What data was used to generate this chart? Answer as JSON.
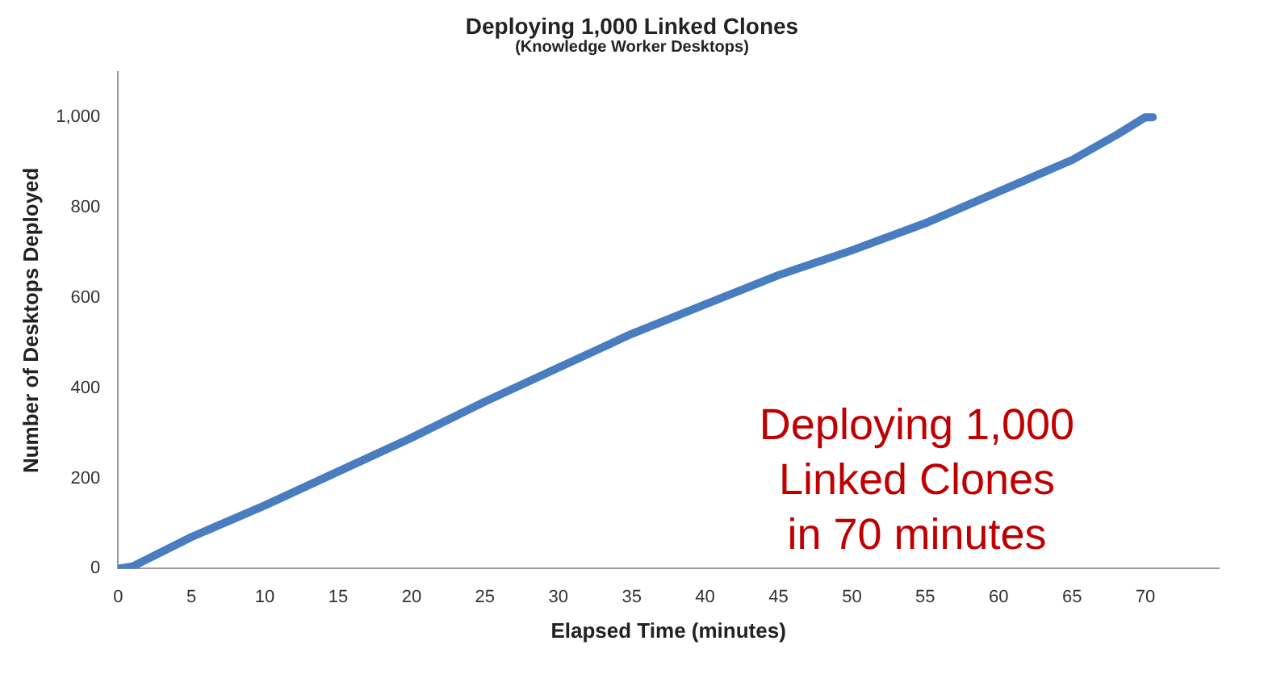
{
  "chart_data": {
    "type": "line",
    "title": "Deploying 1,000 Linked Clones",
    "subtitle": "(Knowledge Worker Desktops)",
    "xlabel": "Elapsed Time (minutes)",
    "ylabel": "Number of Desktops Deployed",
    "x": [
      0,
      1,
      5,
      10,
      15,
      20,
      25,
      30,
      35,
      40,
      45,
      50,
      55,
      60,
      65,
      68,
      70,
      70.5
    ],
    "series": [
      {
        "color": "#4a7cc0",
        "values": [
          0,
          5,
          70,
          140,
          215,
          290,
          370,
          445,
          520,
          585,
          650,
          705,
          765,
          835,
          905,
          960,
          1000,
          1000
        ]
      }
    ],
    "xlim": [
      0,
      75
    ],
    "xticks": [
      0,
      5,
      10,
      15,
      20,
      25,
      30,
      35,
      40,
      45,
      50,
      55,
      60,
      65,
      70
    ],
    "ylim": [
      0,
      1100
    ],
    "yticks": [
      0,
      200,
      400,
      600,
      800,
      {
        "value": 1000,
        "label": "1,000"
      }
    ],
    "grid": false,
    "legend": false,
    "marker": "none",
    "line_style": "solid",
    "annotations": [
      "Deploying 1,000 Linked Clones in 70 minutes"
    ]
  }
}
